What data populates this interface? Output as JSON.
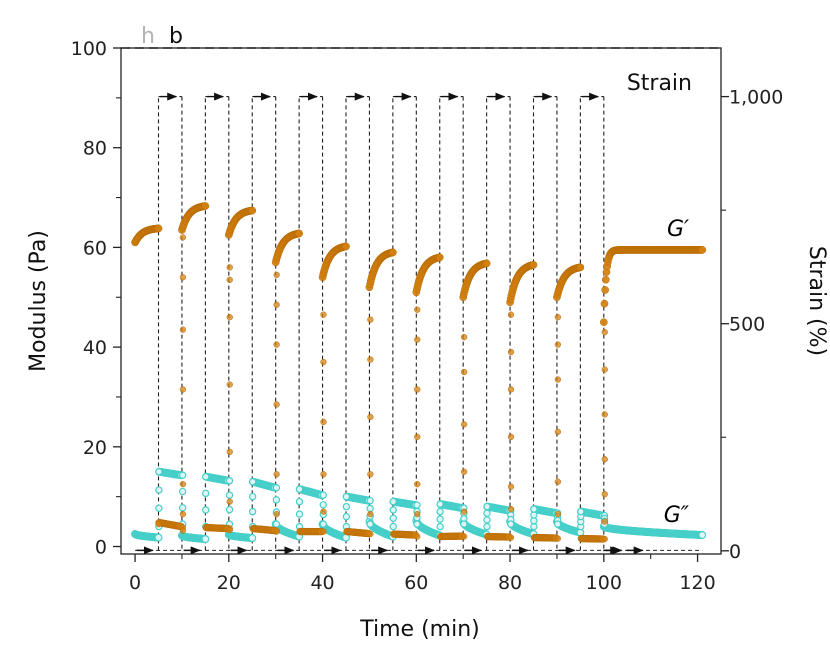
{
  "panel_labels": [
    "h",
    "b"
  ],
  "chart_data": {
    "type": "scatter",
    "xlabel": "Time (min)",
    "ylabel": "Modulus (Pa)",
    "y2label": "Strain (%)",
    "xlim": [
      -3,
      125
    ],
    "ylim": [
      -1.5,
      100
    ],
    "y2lim": [
      -7,
      1107
    ],
    "xticks": [
      0,
      20,
      40,
      60,
      80,
      100,
      120
    ],
    "xtick_labels": [
      "0",
      "20",
      "40",
      "60",
      "80",
      "100",
      "120"
    ],
    "yticks": [
      0,
      20,
      40,
      60,
      80,
      100
    ],
    "ytick_labels": [
      "0",
      "20",
      "40",
      "60",
      "80",
      "100"
    ],
    "y2ticks": [
      0,
      500,
      1000
    ],
    "y2tick_labels": [
      "0",
      "500",
      "1,000"
    ],
    "annotations": {
      "strain": "Strain",
      "gp": "G′",
      "gpp": "G″"
    },
    "colors": {
      "gp": "#d4800f",
      "gpp": "#46cfc9",
      "strain": "#111111"
    },
    "strain_protocol": {
      "low_strain_pct": 1,
      "high_strain_pct": 1000,
      "high_windows": [
        [
          5,
          10
        ],
        [
          15,
          20
        ],
        [
          25,
          30
        ],
        [
          35,
          40
        ],
        [
          45,
          50
        ],
        [
          55,
          60
        ],
        [
          65,
          70
        ],
        [
          75,
          80
        ],
        [
          85,
          90
        ],
        [
          95,
          100
        ]
      ]
    },
    "series": [
      {
        "name": "G′",
        "segments": [
          {
            "t": [
              0,
              5
            ],
            "start": 61.0,
            "end": 63.8
          },
          {
            "t": [
              10,
              15
            ],
            "start": 63.5,
            "end": 68.3
          },
          {
            "t": [
              20,
              25
            ],
            "start": 62.5,
            "end": 67.4
          },
          {
            "t": [
              30,
              35
            ],
            "start": 57.0,
            "end": 62.8
          },
          {
            "t": [
              40,
              45
            ],
            "start": 54.0,
            "end": 60.2
          },
          {
            "t": [
              50,
              55
            ],
            "start": 52.0,
            "end": 59.0
          },
          {
            "t": [
              60,
              65
            ],
            "start": 51.0,
            "end": 58.0
          },
          {
            "t": [
              70,
              75
            ],
            "start": 50.0,
            "end": 56.8
          },
          {
            "t": [
              80,
              85
            ],
            "start": 49.0,
            "end": 56.5
          },
          {
            "t": [
              90,
              95
            ],
            "start": 50.0,
            "end": 56.0
          },
          {
            "t": [
              100,
              121
            ],
            "start": 45.0,
            "end": 59.5
          }
        ],
        "breakdown": [
          {
            "t": 5,
            "values": [
              4.8,
              4.5
            ]
          },
          {
            "t": 10,
            "values": [
              3.8,
              3.2,
              6.5,
              12.5,
              31.5,
              43.5,
              54.0,
              62.0
            ]
          },
          {
            "t": 20,
            "values": [
              3.6,
              3.3,
              9.0,
              19.0,
              32.5,
              46.0,
              53.5,
              56.0
            ]
          },
          {
            "t": 30,
            "values": [
              3.0,
              3.2,
              6.5,
              14.5,
              28.5,
              40.5,
              48.5,
              54.5
            ]
          },
          {
            "t": 40,
            "values": [
              3.0,
              7.0,
              14.5,
              25.0,
              37.0,
              46.5
            ]
          },
          {
            "t": 50,
            "values": [
              2.5,
              6.5,
              14.5,
              26.0,
              37.5,
              45.5
            ]
          },
          {
            "t": 60,
            "values": [
              2.0,
              6.5,
              12.5,
              22.0,
              31.5,
              41.5,
              47.5
            ]
          },
          {
            "t": 70,
            "values": [
              2.0,
              7.0,
              15.0,
              24.5,
              35.0,
              42.0
            ]
          },
          {
            "t": 80,
            "values": [
              1.8,
              7.5,
              12.0,
              22.0,
              31.5,
              39.0,
              46.5
            ]
          },
          {
            "t": 90,
            "values": [
              1.6,
              6.5,
              13.0,
              23.0,
              33.5,
              40.5,
              46.0
            ]
          },
          {
            "t": 100,
            "values": [
              1.5,
              5.0,
              10.5,
              17.5,
              26.5,
              35.5,
              43.0
            ]
          }
        ],
        "high_strain_start": [
          4.8,
          3.8,
          3.6,
          3.0,
          3.0,
          2.5,
          2.0,
          2.0,
          1.8,
          1.6
        ],
        "high_strain_end": [
          4.0,
          3.6,
          3.2,
          3.0,
          2.6,
          2.3,
          2.1,
          1.9,
          1.7,
          1.5
        ]
      },
      {
        "name": "G″",
        "segments": [
          {
            "t": [
              0,
              5
            ],
            "start": 2.5,
            "end": 1.8
          },
          {
            "t": [
              10,
              15
            ],
            "start": 2.2,
            "end": 1.5
          },
          {
            "t": [
              20,
              25
            ],
            "start": 2.4,
            "end": 1.7
          },
          {
            "t": [
              30,
              35
            ],
            "start": 4.5,
            "end": 2.0
          },
          {
            "t": [
              40,
              45
            ],
            "start": 4.5,
            "end": 1.8
          },
          {
            "t": [
              50,
              55
            ],
            "start": 5.0,
            "end": 2.0
          },
          {
            "t": [
              60,
              65
            ],
            "start": 5.2,
            "end": 2.2
          },
          {
            "t": [
              70,
              75
            ],
            "start": 5.0,
            "end": 2.4
          },
          {
            "t": [
              80,
              85
            ],
            "start": 5.0,
            "end": 2.5
          },
          {
            "t": [
              90,
              95
            ],
            "start": 5.0,
            "end": 2.8
          },
          {
            "t": [
              100,
              121
            ],
            "start": 4.0,
            "end": 2.3
          }
        ],
        "high_strain_start": [
          15.0,
          14.0,
          13.0,
          11.5,
          10.0,
          9.0,
          8.5,
          8.0,
          7.5,
          7.0
        ],
        "high_strain_end": [
          14.3,
          13.2,
          11.8,
          10.3,
          9.2,
          8.3,
          7.7,
          7.2,
          6.7,
          6.2
        ]
      }
    ]
  }
}
